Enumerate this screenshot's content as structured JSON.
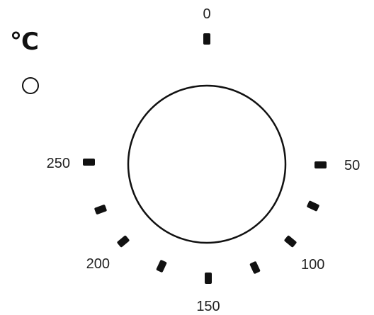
{
  "dial": {
    "unit": "°C",
    "scale": [
      {
        "value": 0,
        "label": "0"
      },
      {
        "value": 50,
        "label": "50"
      },
      {
        "value": 100,
        "label": "100"
      },
      {
        "value": 150,
        "label": "150"
      },
      {
        "value": 200,
        "label": "200"
      },
      {
        "value": 250,
        "label": "250"
      }
    ],
    "minor_ticks": [
      75,
      125,
      175,
      225
    ],
    "colors": {
      "ink": "#111111",
      "label": "#222222",
      "background": "#ffffff"
    }
  }
}
